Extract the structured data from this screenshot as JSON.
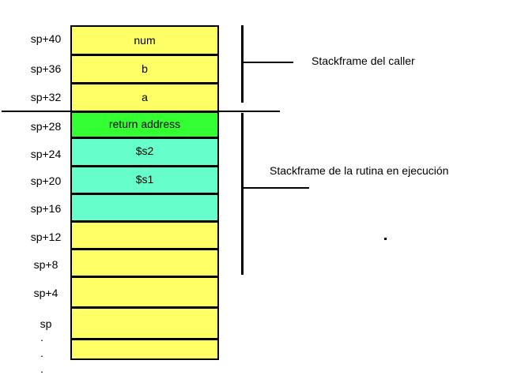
{
  "colors": {
    "caller_cell": "#ffff66",
    "return_address": "#33ff33",
    "saved_register": "#66ffcc",
    "empty_cell": "#ffff66"
  },
  "offsets": [
    "sp+40",
    "sp+36",
    "sp+32",
    "sp+28",
    "sp+24",
    "sp+20",
    "sp+16",
    "sp+12",
    "sp+8",
    "sp+4",
    "sp"
  ],
  "cells": [
    {
      "text": "num",
      "color": "#ffff66"
    },
    {
      "text": "b",
      "color": "#ffff66"
    },
    {
      "text": "a",
      "color": "#ffff66"
    },
    {
      "text": "return address",
      "color": "#33ff33"
    },
    {
      "text": "$s2",
      "color": "#66ffcc"
    },
    {
      "text": "$s1",
      "color": "#66ffcc"
    },
    {
      "text": "",
      "color": "#66ffcc"
    },
    {
      "text": "",
      "color": "#ffff66"
    },
    {
      "text": "",
      "color": "#ffff66"
    },
    {
      "text": "",
      "color": "#ffff66"
    },
    {
      "text": "",
      "color": "#ffff66"
    },
    {
      "text": "",
      "color": "#ffff66"
    }
  ],
  "ellipsis": [
    ".",
    ".",
    "."
  ],
  "labels": {
    "caller_frame": "Stackframe del caller",
    "routine_frame": "Stackframe de la rutina en ejecución"
  }
}
